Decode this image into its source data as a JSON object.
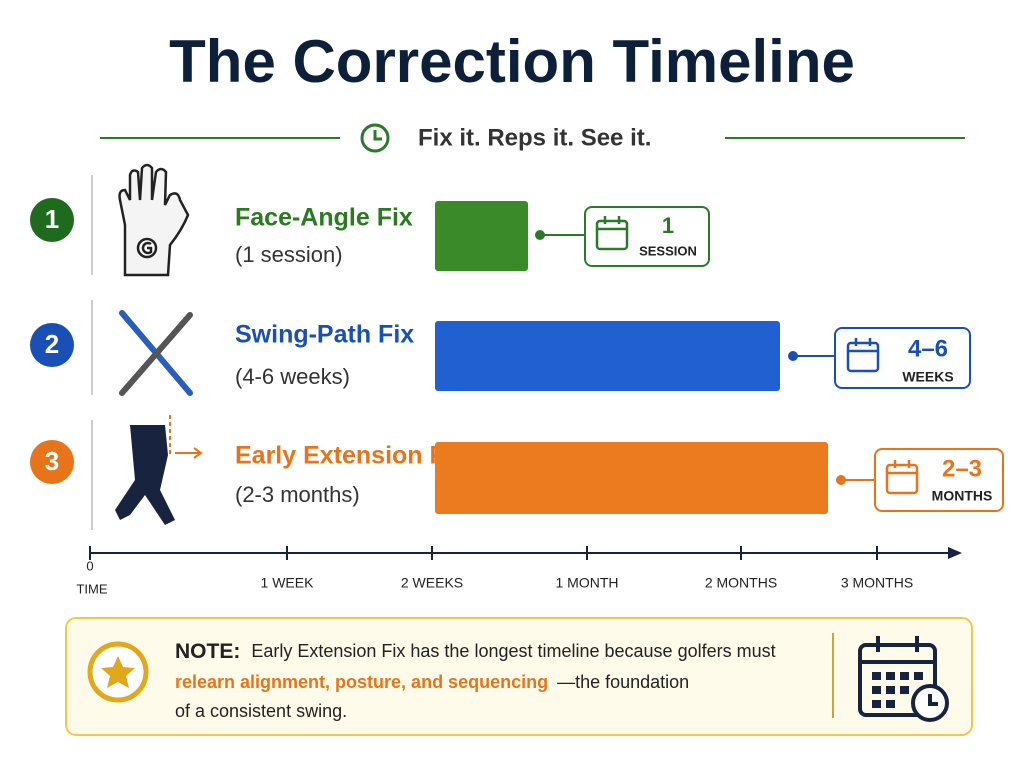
{
  "header": {
    "title": "The Correction Timeline",
    "subtitle": "Fix it. Reps it. See it."
  },
  "rows": [
    {
      "number": "1",
      "title": "Face-Angle Fix",
      "detail": "(1 session)",
      "badge_value": "1",
      "badge_unit": "SESSION"
    },
    {
      "number": "2",
      "title": "Swing-Path Fix",
      "detail": "(4-6 weeks)",
      "badge_value": "4–6",
      "badge_unit": "WEEKS"
    },
    {
      "number": "3",
      "title": "Early Extension Fix",
      "detail": "(2-3 months)",
      "badge_value": "2–3",
      "badge_unit": "MONTHS"
    }
  ],
  "axis": {
    "origin": "0",
    "origin_label": "TIME",
    "ticks": [
      "1 WEEK",
      "2 WEEKS",
      "1 MONTH",
      "2 MONTHS",
      "3 MONTHS"
    ]
  },
  "note": {
    "label": "NOTE:",
    "line1": "Early Extension Fix has the longest timeline because golfers must",
    "highlight": "relearn alignment, posture, and sequencing",
    "line2_rest": "—the foundation",
    "line3": "of a consistent swing."
  }
}
